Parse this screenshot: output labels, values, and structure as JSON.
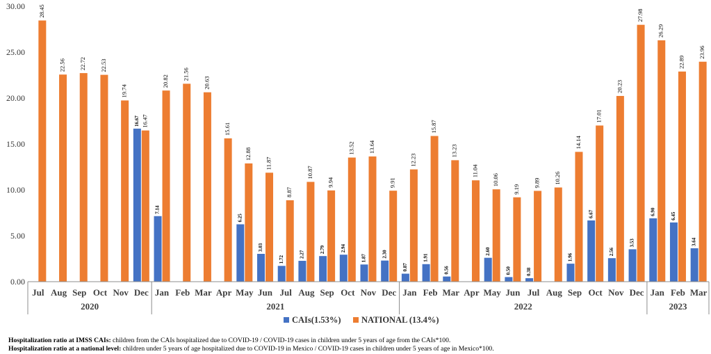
{
  "chart_data": {
    "type": "bar",
    "ylim": [
      0,
      30
    ],
    "y_ticks": [
      "0.00",
      "5.00",
      "10.00",
      "15.00",
      "20.00",
      "25.00",
      "30.00"
    ],
    "grid": false,
    "legend_position": "bottom-center",
    "categories": [
      "Jul",
      "Aug",
      "Sep",
      "Oct",
      "Nov",
      "Dec",
      "Jan",
      "Feb",
      "Mar",
      "Apr",
      "May",
      "Jun",
      "Jul",
      "Aug",
      "Sep",
      "Oct",
      "Nov",
      "Dec",
      "Jan",
      "Feb",
      "Mar",
      "Apr",
      "May",
      "Jun",
      "Jul",
      "Aug",
      "Sep",
      "Oct",
      "Nov",
      "Dec",
      "Jan",
      "Feb",
      "Mar"
    ],
    "year_groups": [
      {
        "label": "2020",
        "count": 6
      },
      {
        "label": "2021",
        "count": 12
      },
      {
        "label": "2022",
        "count": 12
      },
      {
        "label": "2023",
        "count": 3
      }
    ],
    "series": [
      {
        "name": "CAIs(1.53%)",
        "color": "#4472C4",
        "values": [
          null,
          null,
          null,
          null,
          null,
          16.67,
          7.14,
          null,
          null,
          null,
          6.25,
          3.03,
          1.72,
          2.27,
          2.79,
          2.94,
          1.87,
          2.3,
          0.87,
          1.91,
          0.56,
          null,
          2.6,
          0.5,
          0.38,
          null,
          1.96,
          6.67,
          2.56,
          3.53,
          6.9,
          6.45,
          3.64
        ],
        "labels": [
          "",
          "",
          "",
          "",
          "",
          "16.67",
          "7.14",
          "",
          "",
          "",
          "6.25",
          "3.03",
          "1.72",
          "2.27",
          "2.79",
          "2.94",
          "1.87",
          "2.30",
          "0.87",
          "1.91",
          "0.56",
          "",
          "2.60",
          "0.50",
          "0.38",
          "",
          "1.96",
          "6.67",
          "2.56",
          "3.53",
          "6.90",
          "6.45",
          "3.64"
        ]
      },
      {
        "name": "NATIONAL (13.4%)",
        "color": "#ED7D31",
        "values": [
          28.45,
          22.56,
          22.72,
          22.53,
          19.74,
          16.47,
          20.82,
          21.56,
          20.63,
          15.61,
          12.88,
          11.87,
          8.87,
          10.87,
          9.94,
          13.52,
          13.64,
          9.91,
          12.23,
          15.87,
          13.23,
          11.04,
          10.06,
          9.19,
          9.89,
          10.26,
          14.14,
          17.01,
          20.23,
          27.98,
          26.29,
          22.89,
          23.96
        ],
        "labels": [
          "28.45",
          "22.56",
          "22.72",
          "22.53",
          "19.74",
          "16.47",
          "20.82",
          "21.56",
          "20.63",
          "15.61",
          "12.88",
          "11.87",
          "8.87",
          "10.87",
          "9.94",
          "13.52",
          "13.64",
          "9.91",
          "12.23",
          "15.87",
          "13.23",
          "11.04",
          "10.06",
          "9.19",
          "9.89",
          "10.26",
          "14.14",
          "17.01",
          "20.23",
          "27.98",
          "26.29",
          "22.89",
          "23.96"
        ]
      }
    ]
  },
  "footnotes": [
    {
      "bold": "Hospitalization ratio at IMSS CAIs:",
      "text": " children from the CAIs hospitalized due to COVID-19 / COVID-19 cases in children under 5 years of age from the CAIs*100."
    },
    {
      "bold": "Hospitalization ratio at a national level:",
      "text": " children under 5 years of age hospitalized due to COVID-19 in Mexico / COVID-19 cases in children under 5 years of age in Mexico*100."
    }
  ]
}
